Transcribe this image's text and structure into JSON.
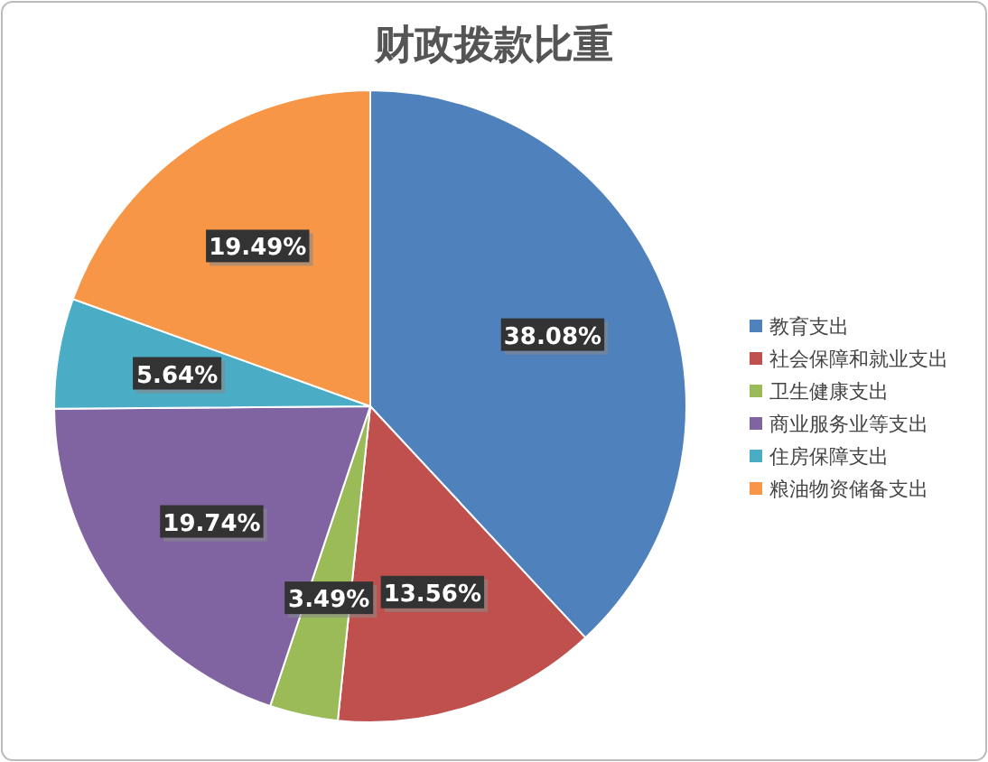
{
  "chart_data": {
    "type": "pie",
    "title": "财政拨款比重",
    "categories": [
      "教育支出",
      "社会保障和就业支出",
      "卫生健康支出",
      "商业服务业等支出",
      "住房保障支出",
      "粮油物资储备支出"
    ],
    "values": [
      38.08,
      13.56,
      3.49,
      19.74,
      5.64,
      19.49
    ],
    "colors": [
      "#4f81bd",
      "#c0504d",
      "#9bbb59",
      "#8064a2",
      "#4bacc6",
      "#f79646"
    ],
    "value_labels": [
      "38.08%",
      "13.56%",
      "3.49%",
      "19.74%",
      "5.64%",
      "19.49%"
    ],
    "legend": "right"
  }
}
